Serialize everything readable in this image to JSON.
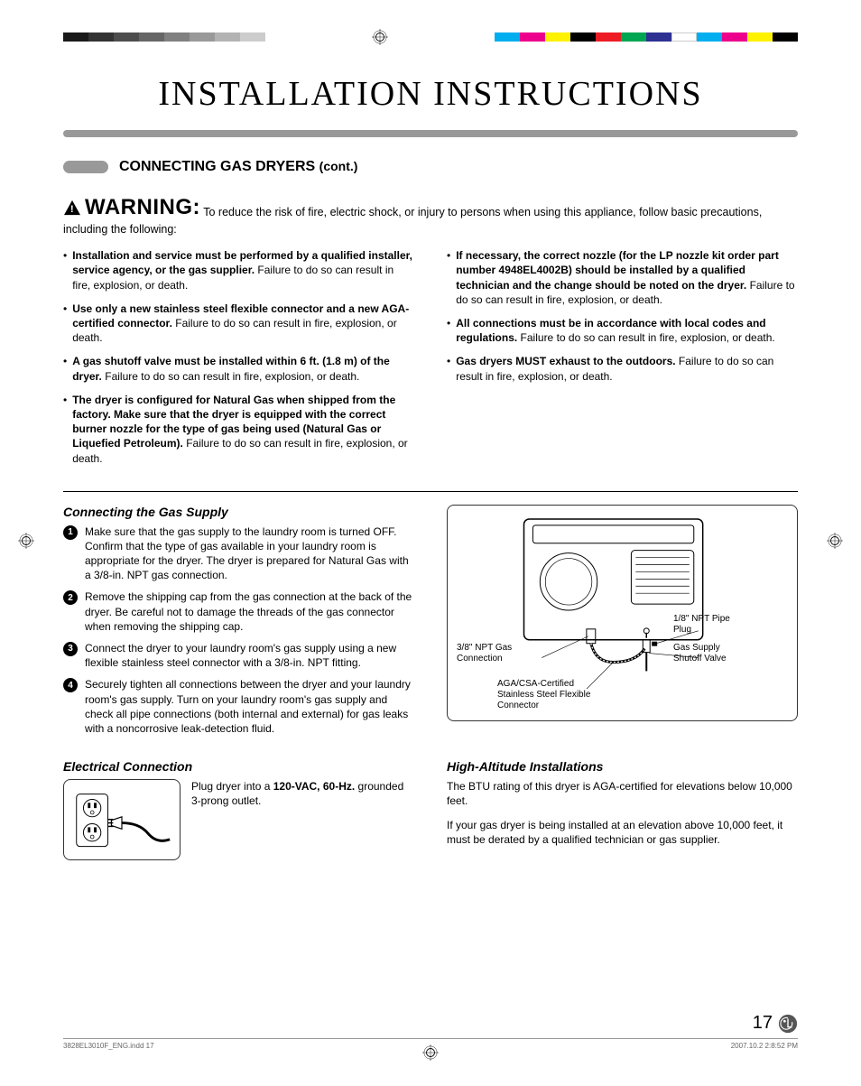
{
  "print_marks": {
    "gray_steps": [
      "#1a1a1a",
      "#333333",
      "#4d4d4d",
      "#666666",
      "#808080",
      "#999999",
      "#b3b3b3",
      "#cccccc"
    ],
    "color_bar": [
      "#00aeef",
      "#ec008c",
      "#fff200",
      "#000000",
      "#ed1c24",
      "#00a651",
      "#2e3192",
      "#ffffff",
      "#00aeef",
      "#ec008c",
      "#fff200",
      "#000000"
    ]
  },
  "title": "INSTALLATION INSTRUCTIONS",
  "section_title": "CONNECTING GAS DRYERS",
  "section_cont": "(cont.)",
  "warning_label": "WARNING:",
  "warning_intro": "To reduce the risk of fire, electric shock, or injury to persons when using this appliance, follow basic precautions, including the following:",
  "bullets_left": [
    {
      "bold": "Installation and service must be performed by a qualified installer, service agency, or the gas supplier.",
      "rest": " Failure to do so can result in fire, explosion, or death."
    },
    {
      "bold": "Use only a new stainless steel flexible connector and a new AGA-certified connector.",
      "rest": " Failure to do so can result in fire, explosion, or death."
    },
    {
      "bold": "A gas shutoff valve must be installed within 6 ft. (1.8 m) of the dryer.",
      "rest": " Failure to do so can result in fire, explosion, or death."
    },
    {
      "bold": "The dryer is configured for Natural Gas when shipped from the factory. Make sure that the dryer is equipped with the correct burner nozzle for the type of gas being used (Natural Gas or Liquefied Petroleum).",
      "rest": " Failure to do so can result in fire, explosion, or death."
    }
  ],
  "bullets_right": [
    {
      "bold": "If necessary, the correct nozzle (for the LP nozzle kit order part number 4948EL4002B) should be installed by a qualified technician and the change should be noted on the dryer.",
      "rest": " Failure to do so can result in fire, explosion, or death."
    },
    {
      "bold": "All connections must be in accordance with local codes and regulations.",
      "rest": " Failure to do so can result in fire, explosion, or death."
    },
    {
      "bold": "Gas dryers MUST exhaust to the outdoors.",
      "rest": " Failure to do so can result in fire, explosion, or death."
    }
  ],
  "gas_supply": {
    "title": "Connecting the Gas Supply",
    "steps": [
      "Make sure that the gas supply to the laundry room is turned OFF. Confirm that the type of gas available in your laundry room is appropriate for the dryer. The dryer is prepared for Natural Gas with a 3/8-in. NPT gas connection.",
      "Remove the shipping cap from the gas connection at the back of the dryer. Be careful not to damage the threads of the gas connector when removing the shipping cap.",
      "Connect the dryer to your laundry room's gas supply using a new flexible stainless steel connector with a 3/8-in. NPT fitting.",
      "Securely tighten all connections between the dryer and your laundry room's gas supply. Turn on your laundry room's gas supply and check all pipe connections (both internal and external) for gas leaks with a noncorrosive leak-detection fluid."
    ],
    "diagram_labels": {
      "npt_conn": "3/8\" NPT Gas Connection",
      "aga": "AGA/CSA-Certified Stainless Steel Flexible Connector",
      "pipe_plug": "1/8\" NPT Pipe Plug",
      "shutoff": "Gas Supply Shutoff Valve"
    }
  },
  "electrical": {
    "title": "Electrical Connection",
    "text_pre": "Plug dryer into a ",
    "text_bold": "120-VAC, 60-Hz.",
    "text_post": " grounded 3-prong outlet."
  },
  "high_alt": {
    "title": "High-Altitude Installations",
    "p1": "The BTU rating of this dryer is AGA-certified for elevations below 10,000 feet.",
    "p2": "If your gas dryer is being installed at an elevation above 10,000 feet, it must be derated by a qualified technician or gas supplier."
  },
  "page_number": "17",
  "footer_left": "3828EL3010F_ENG.indd   17",
  "footer_right": "2007.10.2   2:8:52 PM",
  "colors": {
    "hr_bar": "#999999",
    "text": "#000000"
  }
}
